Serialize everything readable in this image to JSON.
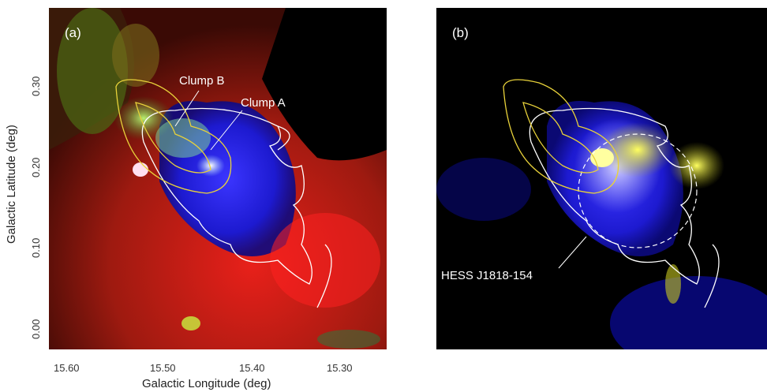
{
  "panels": {
    "a": {
      "label": "(a)",
      "annotations": {
        "clump_b": "Clump B",
        "clump_a": "Clump A"
      }
    },
    "b": {
      "label": "(b)",
      "annotations": {
        "source": "HESS J1818-154"
      }
    }
  },
  "axes": {
    "xlabel": "Galactic Longitude (deg)",
    "ylabel": "Galactic Latitude (deg)",
    "xticks": [
      "15.60",
      "15.50",
      "15.40",
      "15.30"
    ],
    "yticks": [
      "0.30",
      "0.20",
      "0.10",
      "0.00"
    ]
  },
  "colors": {
    "contour": "#ffffff",
    "contour_yellow": "#e8d23a",
    "blue": "#1a1ac8",
    "red": "#d81818",
    "yellow": "#e6e61a"
  }
}
